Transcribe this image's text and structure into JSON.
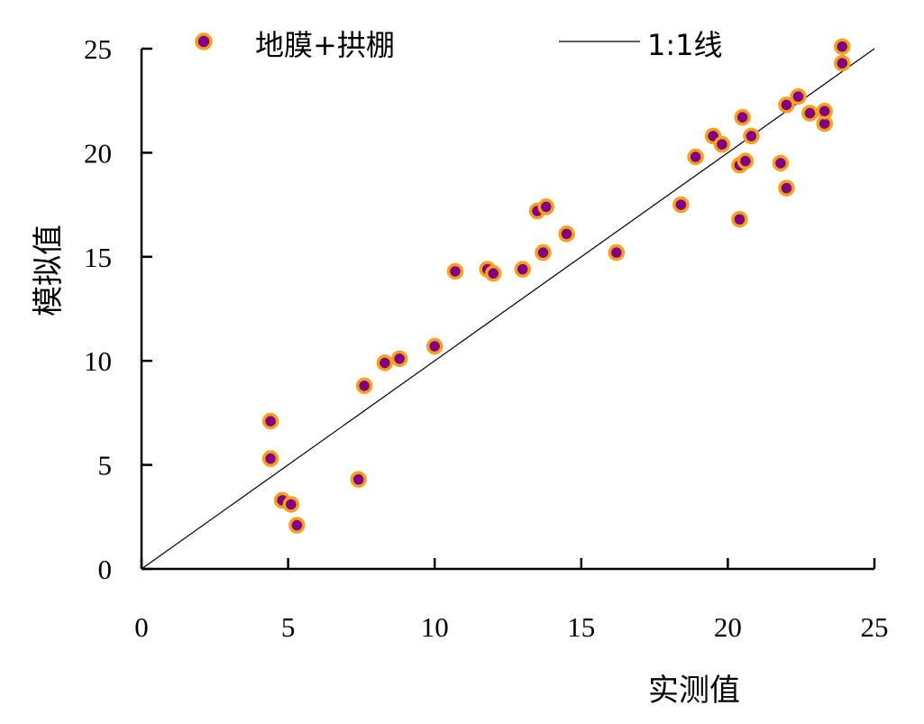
{
  "chart_data": {
    "type": "scatter",
    "xlabel": "实测值",
    "ylabel": "模拟值",
    "xlim": [
      0,
      25
    ],
    "ylim": [
      0,
      25
    ],
    "x_ticks": [
      "0",
      "5",
      "10",
      "15",
      "20",
      "25"
    ],
    "y_ticks": [
      "0",
      "5",
      "10",
      "15",
      "20",
      "25"
    ],
    "grid": false,
    "legend_position": "top",
    "colors": {
      "marker_fill": "#800080",
      "marker_edge": "#F5A020",
      "line": "#000000"
    },
    "series": [
      {
        "name": "地膜+拱棚",
        "x": [
          4.4,
          4.4,
          4.8,
          5.1,
          5.3,
          7.4,
          7.6,
          8.3,
          8.8,
          10.0,
          10.7,
          11.8,
          12.0,
          13.0,
          13.5,
          13.7,
          13.8,
          14.5,
          16.2,
          18.4,
          18.9,
          19.5,
          19.8,
          20.4,
          20.4,
          20.5,
          20.6,
          20.8,
          21.8,
          22.0,
          22.0,
          22.4,
          22.8,
          23.3,
          23.3,
          23.9,
          23.9
        ],
        "y": [
          7.1,
          5.3,
          3.3,
          3.1,
          2.1,
          4.3,
          8.8,
          9.9,
          10.1,
          10.7,
          14.3,
          14.4,
          14.2,
          14.4,
          17.2,
          15.2,
          17.4,
          16.1,
          15.2,
          17.5,
          19.8,
          20.8,
          20.4,
          19.4,
          16.8,
          21.7,
          19.6,
          20.8,
          19.5,
          22.3,
          18.3,
          22.7,
          21.9,
          21.4,
          22.0,
          25.1,
          24.3
        ]
      },
      {
        "name": "1:1线",
        "type": "line",
        "x": [
          0,
          25
        ],
        "y": [
          0,
          25
        ]
      }
    ]
  }
}
